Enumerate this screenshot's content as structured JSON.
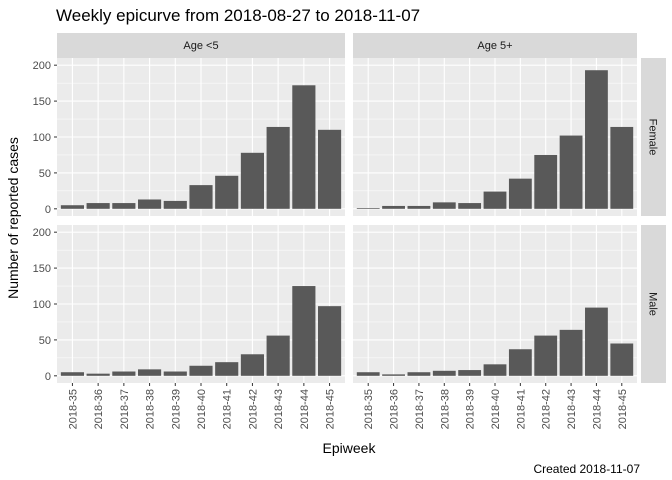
{
  "chart_data": {
    "type": "bar",
    "title": "Weekly epicurve from 2018-08-27 to 2018-11-07",
    "xlabel": "Epiweek",
    "ylabel": "Number of reported cases",
    "caption": "Created 2018-11-07",
    "categories": [
      "2018-35",
      "2018-36",
      "2018-37",
      "2018-38",
      "2018-39",
      "2018-40",
      "2018-41",
      "2018-42",
      "2018-43",
      "2018-44",
      "2018-45"
    ],
    "ylim": [
      0,
      200
    ],
    "yticks": [
      "0",
      "50",
      "100",
      "150",
      "200"
    ],
    "facet_cols": [
      "Age <5",
      "Age 5+"
    ],
    "facet_rows": [
      "Female",
      "Male"
    ],
    "panels": [
      {
        "col": "Age <5",
        "row": "Female",
        "values": [
          5,
          8,
          8,
          13,
          11,
          33,
          46,
          78,
          114,
          172,
          110
        ]
      },
      {
        "col": "Age 5+",
        "row": "Female",
        "values": [
          1,
          4,
          4,
          9,
          8,
          24,
          42,
          75,
          102,
          193,
          114
        ]
      },
      {
        "col": "Age <5",
        "row": "Male",
        "values": [
          5,
          3,
          6,
          9,
          6,
          14,
          19,
          30,
          56,
          125,
          97
        ]
      },
      {
        "col": "Age 5+",
        "row": "Male",
        "values": [
          5,
          2,
          5,
          7,
          8,
          16,
          37,
          56,
          64,
          95,
          45
        ]
      }
    ],
    "grid": true,
    "colors": {
      "bar": "#595959",
      "panel_bg": "#ebebeb",
      "strip_bg": "#d9d9d9",
      "grid": "#ffffff"
    }
  }
}
